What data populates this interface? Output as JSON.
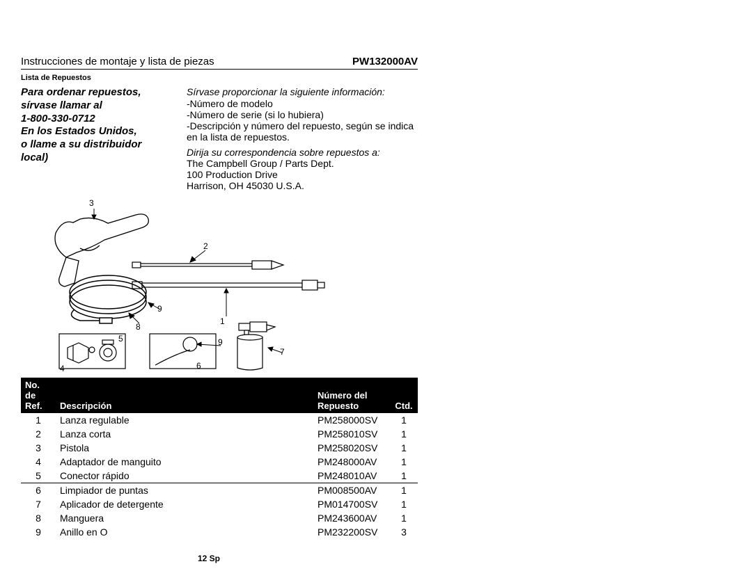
{
  "header": {
    "left": "Instrucciones de montaje y lista de piezas",
    "right": "PW132000AV"
  },
  "section_label": "Lista de Repuestos",
  "order_block": [
    "Para ordenar repuestos,",
    "sírvase llamar al",
    "1-800-330-0712",
    "En los Estados Unidos,",
    "o llame a su distribuidor",
    "local)"
  ],
  "info": {
    "intro": "Sírvase proporcionar la siguiente información:",
    "bullets": [
      "-Número de modelo",
      "-Número de serie (si lo hubiera)",
      "-Descripción y número del repuesto, según se indica en la lista de repuestos."
    ],
    "addr_intro": "Dirija su correspondencia sobre repuestos a:",
    "addr": [
      "The Campbell Group / Parts Dept.",
      "100 Production Drive",
      "Harrison, OH   45030  U.S.A."
    ]
  },
  "diagram_labels": {
    "l1": "1",
    "l2": "2",
    "l3": "3",
    "l4": "4",
    "l5": "5",
    "l6": "6",
    "l7": "7",
    "l8": "8",
    "l9a": "9",
    "l9b": "9"
  },
  "table": {
    "headers": {
      "ref1": "No. de",
      "ref2": "Ref.",
      "desc": "Descripción",
      "part1": "Número del",
      "part2": "Repuesto",
      "qty": "Ctd."
    },
    "rows": [
      {
        "ref": "1",
        "desc": "Lanza regulable",
        "part": "PM258000SV",
        "qty": "1",
        "rule": false
      },
      {
        "ref": "2",
        "desc": "Lanza corta",
        "part": "PM258010SV",
        "qty": "1",
        "rule": false
      },
      {
        "ref": "3",
        "desc": "Pistola",
        "part": "PM258020SV",
        "qty": "1",
        "rule": false
      },
      {
        "ref": "4",
        "desc": "Adaptador de manguito",
        "part": "PM248000AV",
        "qty": "1",
        "rule": false
      },
      {
        "ref": "5",
        "desc": "Conector rápido",
        "part": "PM248010AV",
        "qty": "1",
        "rule": false
      },
      {
        "ref": "6",
        "desc": "Limpiador de puntas",
        "part": "PM008500AV",
        "qty": "1",
        "rule": true
      },
      {
        "ref": "7",
        "desc": "Aplicador de detergente",
        "part": "PM014700SV",
        "qty": "1",
        "rule": false
      },
      {
        "ref": "8",
        "desc": "Manguera",
        "part": "PM243600AV",
        "qty": "1",
        "rule": false
      },
      {
        "ref": "9",
        "desc": "Anillo en O",
        "part": "PM232200SV",
        "qty": "3",
        "rule": false
      }
    ]
  },
  "footer": "12 Sp",
  "colors": {
    "text": "#000000",
    "bg": "#ffffff",
    "header_bg": "#000000",
    "header_fg": "#ffffff",
    "stroke": "#000000"
  }
}
